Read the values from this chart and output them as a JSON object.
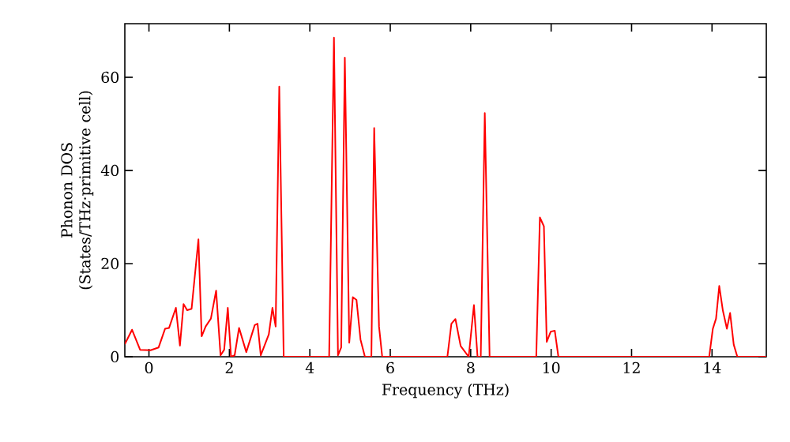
{
  "chart_data": {
    "type": "line",
    "xlabel": "Frequency (THz)",
    "ylabel": "Phonon DOS (States/THz·primitive cell)",
    "xlim": [
      -0.6,
      15.35
    ],
    "ylim": [
      0,
      71.5
    ],
    "xticks": [
      0,
      2,
      4,
      6,
      8,
      10,
      12,
      14
    ],
    "yticks": [
      0,
      20,
      40,
      60
    ],
    "marker": "none",
    "line_style": "solid",
    "series": [
      {
        "color": "#ff0000",
        "x": [
          -0.6,
          -0.42,
          -0.22,
          0.04,
          0.24,
          0.4,
          0.5,
          0.67,
          0.77,
          0.86,
          0.95,
          1.06,
          1.23,
          1.31,
          1.41,
          1.54,
          1.67,
          1.78,
          1.87,
          1.96,
          2.04,
          2.13,
          2.24,
          2.42,
          2.63,
          2.7,
          2.78,
          2.98,
          3.07,
          3.15,
          3.24,
          3.35,
          4.48,
          4.6,
          4.7,
          4.78,
          4.87,
          4.98,
          5.07,
          5.16,
          5.26,
          5.37,
          5.53,
          5.6,
          5.72,
          5.8,
          7.42,
          7.52,
          7.62,
          7.75,
          7.95,
          8.08,
          8.17,
          8.25,
          8.35,
          8.47,
          9.63,
          9.72,
          9.82,
          9.89,
          9.99,
          10.09,
          10.18,
          13.93,
          14.02,
          14.1,
          14.18,
          14.27,
          14.37,
          14.45,
          14.54,
          14.63,
          15.35
        ],
        "values": [
          2.7,
          5.8,
          1.5,
          1.4,
          2,
          6,
          6.2,
          10.5,
          2.4,
          11.3,
          10,
          10.3,
          25.2,
          4.4,
          6.5,
          8.2,
          14.2,
          0.3,
          1.5,
          10.5,
          0,
          0.3,
          6.2,
          1,
          6.8,
          7.1,
          0.3,
          4.8,
          10.5,
          6.5,
          58,
          0,
          0,
          68.5,
          0.3,
          2,
          64.2,
          3,
          12.8,
          12.2,
          3.7,
          0,
          0,
          49.1,
          6.5,
          0,
          0,
          7.1,
          8.1,
          2.3,
          0,
          11.1,
          0,
          0,
          52.3,
          0,
          0,
          29.9,
          28,
          3.2,
          5.4,
          5.6,
          0,
          0,
          6,
          8.2,
          15.2,
          9.9,
          6,
          9.4,
          2.6,
          0,
          0
        ]
      }
    ]
  }
}
